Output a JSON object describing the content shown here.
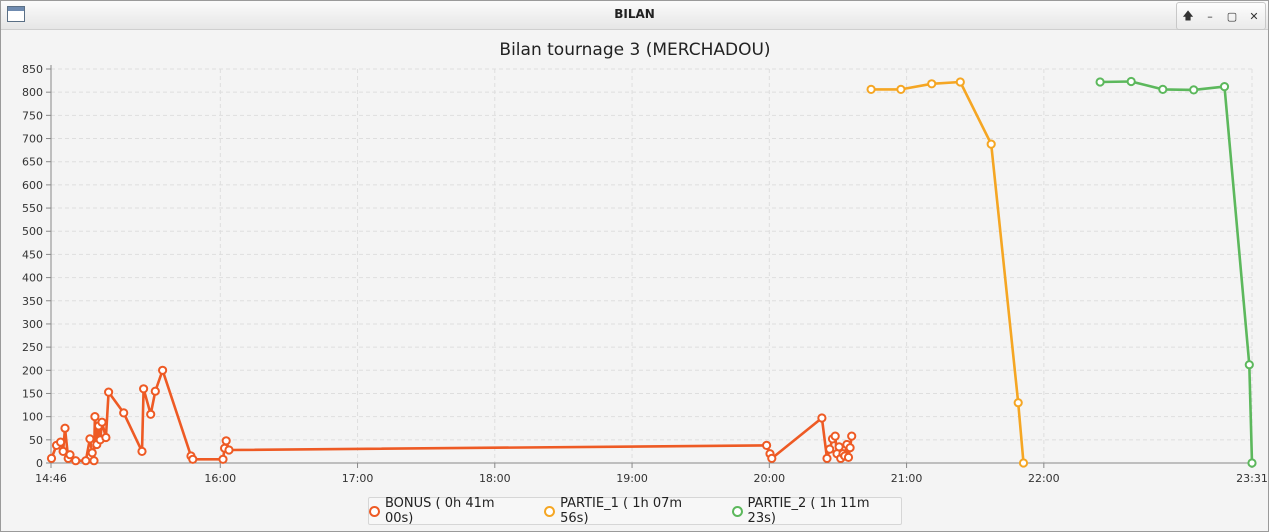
{
  "window": {
    "title": "BILAN",
    "controls": {
      "pin": "🡅",
      "minimize": "–",
      "maximize": "▢",
      "close": "✕"
    }
  },
  "chart_data": {
    "type": "line",
    "title": "Bilan tournage 3 (MERCHADOU)",
    "xlabel": "",
    "ylabel": "",
    "grid": true,
    "legend_position": "bottom",
    "ylim": [
      0,
      850
    ],
    "yticks": [
      0,
      50,
      100,
      150,
      200,
      250,
      300,
      350,
      400,
      450,
      500,
      550,
      600,
      650,
      700,
      750,
      800,
      850
    ],
    "xlim_minutes": [
      886,
      1411
    ],
    "xticks": [
      {
        "m": 886,
        "label": "14:46"
      },
      {
        "m": 960,
        "label": "16:00"
      },
      {
        "m": 1020,
        "label": "17:00"
      },
      {
        "m": 1080,
        "label": "18:00"
      },
      {
        "m": 1140,
        "label": "19:00"
      },
      {
        "m": 1200,
        "label": "20:00"
      },
      {
        "m": 1260,
        "label": "21:00"
      },
      {
        "m": 1320,
        "label": "22:00"
      },
      {
        "m": 1411,
        "label": "23:31"
      }
    ],
    "series": [
      {
        "name": "BONUS ( 0h 41m 00s)",
        "color": "#ee5a24",
        "points": [
          [
            886.2,
            10
          ],
          [
            888.4,
            38
          ],
          [
            890.2,
            45
          ],
          [
            891.3,
            25
          ],
          [
            892.1,
            75
          ],
          [
            893.5,
            10
          ],
          [
            894.3,
            18
          ],
          [
            896.8,
            5
          ],
          [
            901.2,
            5
          ],
          [
            903.0,
            52
          ],
          [
            904.0,
            22
          ],
          [
            904.8,
            5
          ],
          [
            905.2,
            100
          ],
          [
            906.0,
            40
          ],
          [
            906.8,
            80
          ],
          [
            907.5,
            50
          ],
          [
            908.3,
            88
          ],
          [
            910.0,
            55
          ],
          [
            911.2,
            153
          ],
          [
            917.8,
            108
          ],
          [
            925.8,
            25
          ],
          [
            926.5,
            160
          ],
          [
            929.6,
            105
          ],
          [
            931.6,
            155
          ],
          [
            934.8,
            200
          ],
          [
            947.2,
            15
          ],
          [
            948.0,
            8
          ],
          [
            961.2,
            8
          ],
          [
            961.9,
            32
          ],
          [
            962.6,
            48
          ],
          [
            963.8,
            28
          ],
          [
            1198.8,
            38
          ],
          [
            1200.3,
            20
          ],
          [
            1201.1,
            10
          ],
          [
            1223.0,
            97
          ],
          [
            1225.2,
            10
          ],
          [
            1226.4,
            30
          ],
          [
            1227.6,
            52
          ],
          [
            1228.8,
            58
          ],
          [
            1229.6,
            20
          ],
          [
            1230.5,
            35
          ],
          [
            1231.2,
            10
          ],
          [
            1232.2,
            20
          ],
          [
            1233.0,
            15
          ],
          [
            1233.9,
            40
          ],
          [
            1234.6,
            12
          ],
          [
            1235.3,
            33
          ],
          [
            1236.0,
            58
          ]
        ]
      },
      {
        "name": "PARTIE_1 ( 1h 07m 56s)",
        "color": "#f5a623",
        "points": [
          [
            1244.5,
            806
          ],
          [
            1257.5,
            806
          ],
          [
            1271.0,
            818
          ],
          [
            1283.5,
            822
          ],
          [
            1297.0,
            688
          ],
          [
            1308.8,
            130
          ],
          [
            1311.1,
            0
          ]
        ]
      },
      {
        "name": "PARTIE_2 ( 1h 11m 23s)",
        "color": "#5cb85c",
        "points": [
          [
            1344.6,
            822
          ],
          [
            1358.2,
            823
          ],
          [
            1372.0,
            806
          ],
          [
            1385.5,
            805
          ],
          [
            1399.0,
            812
          ],
          [
            1409.8,
            212
          ],
          [
            1411.0,
            0
          ]
        ]
      }
    ]
  }
}
